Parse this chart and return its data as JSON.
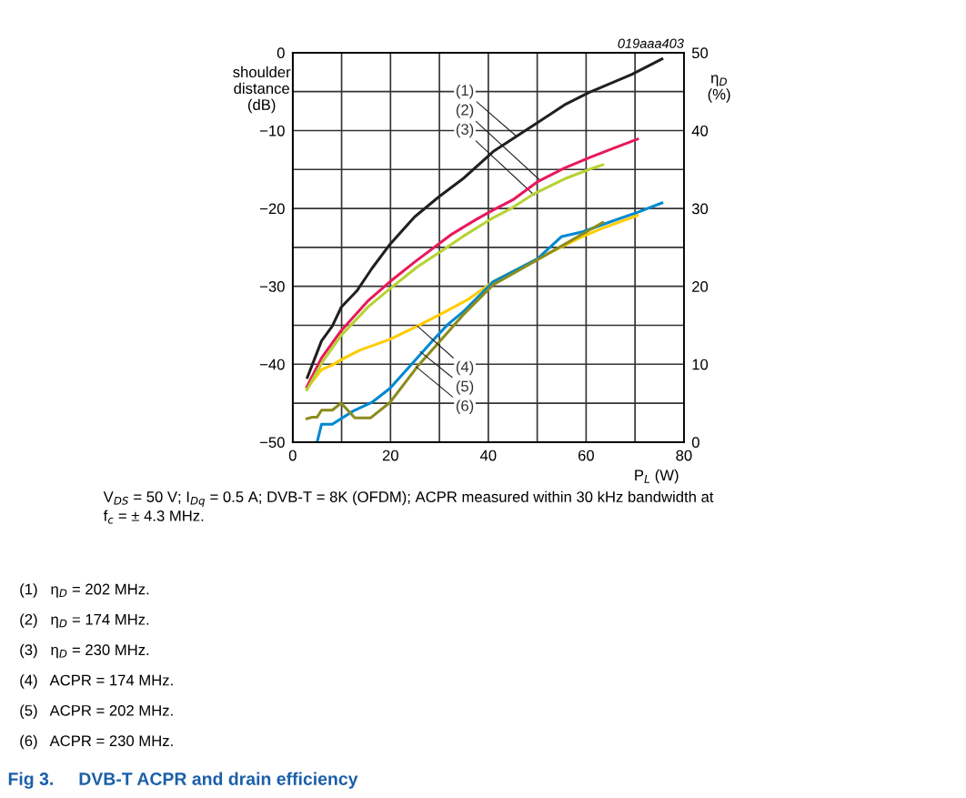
{
  "chart_data": {
    "type": "line",
    "title": "Fig 3.     DVB-T ACPR and drain efficiency",
    "xlabel": "P$_{L}$ (W)",
    "ylabel": "shoulder\ndistance\n(dB)",
    "y2label": "η$_{D}$\n(%)",
    "xlim": [
      0,
      80
    ],
    "xticks": [
      0,
      {
        "value": 10,
        "label": null
      },
      20,
      {
        "value": 30,
        "label": null
      },
      40,
      {
        "value": 50,
        "label": null
      },
      60,
      {
        "value": 70,
        "label": null
      },
      80
    ],
    "ylim": [
      -50,
      0
    ],
    "yticks": [
      -50,
      {
        "value": -45,
        "label": null
      },
      -40,
      {
        "value": -35,
        "label": null
      },
      -30,
      {
        "value": -25,
        "label": null
      },
      -20,
      {
        "value": -15,
        "label": null
      },
      -10,
      {
        "value": -5,
        "label": null
      },
      0
    ],
    "y2lim": [
      0,
      50
    ],
    "y2ticks": [
      0,
      10,
      20,
      30,
      40,
      50
    ],
    "grid": true,
    "line_style": "solid",
    "marker": "none",
    "series": [
      {
        "color": "#231f20",
        "axis": "y2",
        "x": [
          3.0,
          5.9,
          8.1,
          9.9,
          13.1,
          16.2,
          19.9,
          24.9,
          29.9,
          34.8,
          41.0,
          50.0,
          55.6,
          60.6,
          69.3,
          75.5
        ],
        "values": [
          8.3,
          13.0,
          14.9,
          17.3,
          19.4,
          22.3,
          25.4,
          28.9,
          31.5,
          33.8,
          37.3,
          41.0,
          43.3,
          44.9,
          47.2,
          49.2
        ]
      },
      {
        "color": "#e8195a",
        "axis": "y2",
        "x": [
          2.9,
          5.9,
          9.9,
          15.5,
          19.9,
          24.9,
          32.3,
          37.3,
          40.7,
          45.0,
          50.0,
          55.6,
          60.6,
          65.5,
          70.5
        ],
        "values": [
          7.1,
          10.8,
          14.3,
          18.2,
          20.6,
          23.1,
          26.6,
          28.5,
          29.7,
          31.1,
          33.4,
          35.2,
          36.5,
          37.7,
          38.9
        ]
      },
      {
        "color": "#b5d334",
        "axis": "y2",
        "x": [
          2.9,
          6.2,
          9.9,
          15.5,
          20.5,
          25.5,
          31.1,
          34.8,
          40.7,
          44.4,
          49.4,
          55.6,
          60.6,
          63.4
        ],
        "values": [
          6.7,
          10.4,
          13.7,
          17.4,
          20.0,
          22.5,
          24.8,
          26.4,
          28.7,
          29.9,
          31.9,
          33.8,
          35.0,
          35.6
        ]
      },
      {
        "color": "#ffcc00",
        "x": [
          2.9,
          5.9,
          8.1,
          10.6,
          13.7,
          19.9,
          25.5,
          31.1,
          36.1,
          41.0,
          50.0,
          59.3,
          63.1,
          70.5
        ],
        "values": [
          -43.1,
          -40.7,
          -40.1,
          -39.2,
          -38.2,
          -36.8,
          -35.1,
          -33.3,
          -31.6,
          -29.4,
          -26.5,
          -23.6,
          -22.6,
          -20.9
        ]
      },
      {
        "color": "#0089cf",
        "x": [
          5.0,
          5.9,
          8.1,
          12.4,
          16.2,
          19.9,
          24.9,
          28.6,
          31.7,
          34.8,
          41.0,
          50.0,
          55.0,
          59.3,
          65.5,
          70.5,
          75.5
        ],
        "values": [
          -50.0,
          -47.7,
          -47.7,
          -46.0,
          -44.9,
          -43.1,
          -39.6,
          -37.0,
          -34.9,
          -33.3,
          -29.4,
          -26.5,
          -23.6,
          -23.0,
          -21.6,
          -20.5,
          -19.3
        ]
      },
      {
        "color": "#8c8c1e",
        "x": [
          2.9,
          4.0,
          5.0,
          5.9,
          8.1,
          9.9,
          12.7,
          15.9,
          19.9,
          25.5,
          29.9,
          34.8,
          41.0,
          50.0,
          63.4
        ],
        "values": [
          -47.0,
          -46.8,
          -46.8,
          -45.9,
          -45.9,
          -45.0,
          -46.9,
          -46.9,
          -44.9,
          -40.3,
          -37.2,
          -33.7,
          -29.8,
          -26.6,
          -21.8
        ]
      }
    ],
    "annotations": [
      {
        "text": "(1)",
        "x": 45.7,
        "y": -10.7
      },
      {
        "text": "(2)",
        "x": 50.6,
        "y": -16.4
      },
      {
        "text": "(3)",
        "x": 49.4,
        "y": -18.3
      },
      {
        "text": "(4)",
        "x": 25.5,
        "y": -35.1
      },
      {
        "text": "(5)",
        "x": 26.1,
        "y": -38.4
      },
      {
        "text": "(6)",
        "x": 25.2,
        "y": -40.3
      },
      "019aaa403",
      "V$_{DS}$ = 50 V; I$_{Dq}$ = 0.5 A; DVB-T = 8K (OFDM); ACPR measured within 30 kHz bandwidth at\nf$_{c}$ = ± 4.3 MHz.",
      "(1)   η$_{D}$ = 202 MHz.",
      "(2)   η$_{D}$ = 174 MHz.",
      "(3)   η$_{D}$ = 230 MHz.",
      "(4)   ACPR = 174 MHz.",
      "(5)   ACPR = 202 MHz.",
      "(6)   ACPR = 230 MHz."
    ]
  }
}
